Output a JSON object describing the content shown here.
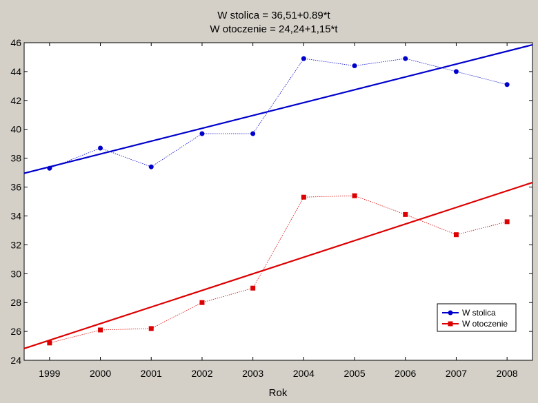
{
  "chart_data": {
    "type": "line",
    "title_lines": [
      "W stolica = 36,51+0.89*t",
      "W otoczenie = 24,24+1,15*t"
    ],
    "xlabel": "Rok",
    "ylabel": "",
    "categories": [
      "1999",
      "2000",
      "2001",
      "2002",
      "2003",
      "2004",
      "2005",
      "2006",
      "2007",
      "2008"
    ],
    "xlim": [
      1998.5,
      2008.5
    ],
    "ylim": [
      24,
      46
    ],
    "yticks": [
      24,
      26,
      28,
      30,
      32,
      34,
      36,
      38,
      40,
      42,
      44,
      46
    ],
    "grid": false,
    "legend_position": "bottom-right",
    "series": [
      {
        "name": "W stolica",
        "color": "#0000cc",
        "marker": "circle",
        "values": [
          37.3,
          38.7,
          37.4,
          39.7,
          39.7,
          44.9,
          44.4,
          44.9,
          44.0,
          43.1
        ],
        "trend": {
          "intercept": 36.51,
          "slope": 0.89,
          "t0": 1998
        }
      },
      {
        "name": "W otoczenie",
        "color": "#dd0000",
        "marker": "square",
        "values": [
          25.2,
          26.1,
          26.2,
          28.0,
          29.0,
          35.3,
          35.4,
          34.1,
          32.7,
          33.6
        ],
        "trend": {
          "intercept": 24.24,
          "slope": 1.15,
          "t0": 1998
        }
      }
    ]
  }
}
